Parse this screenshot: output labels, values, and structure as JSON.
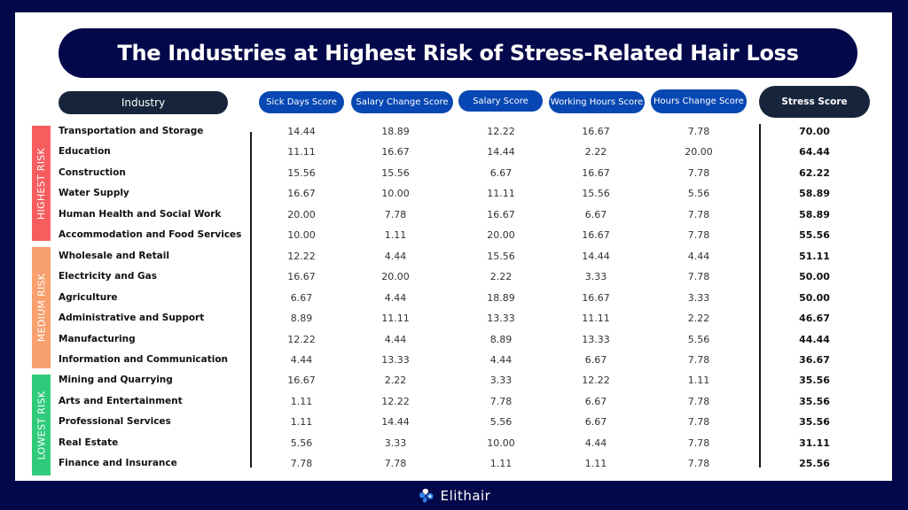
{
  "title": "The Industries at Highest Risk of Stress-Related Hair Loss",
  "headers": {
    "industry": "Industry",
    "columns": [
      "Sick Days Score",
      "Salary Change Score",
      "Salary Score",
      "Working Hours Score",
      "Hours Change Score"
    ],
    "stress": "Stress Score"
  },
  "risk_groups": [
    {
      "label": "HIGHEST RISK",
      "color": "#f75c5f"
    },
    {
      "label": "MEDIUM RISK",
      "color": "#f8a06e"
    },
    {
      "label": "LOWEST RISK",
      "color": "#2fcb7a"
    }
  ],
  "rows": [
    {
      "industry": "Transportation and Storage",
      "values": [
        "14.44",
        "18.89",
        "12.22",
        "16.67",
        "7.78"
      ],
      "stress": "70.00"
    },
    {
      "industry": "Education",
      "values": [
        "11.11",
        "16.67",
        "14.44",
        "2.22",
        "20.00"
      ],
      "stress": "64.44"
    },
    {
      "industry": "Construction",
      "values": [
        "15.56",
        "15.56",
        "6.67",
        "16.67",
        "7.78"
      ],
      "stress": "62.22"
    },
    {
      "industry": "Water Supply",
      "values": [
        "16.67",
        "10.00",
        "11.11",
        "15.56",
        "5.56"
      ],
      "stress": "58.89"
    },
    {
      "industry": "Human Health and Social Work",
      "values": [
        "20.00",
        "7.78",
        "16.67",
        "6.67",
        "7.78"
      ],
      "stress": "58.89"
    },
    {
      "industry": "Accommodation and Food Services",
      "values": [
        "10.00",
        "1.11",
        "20.00",
        "16.67",
        "7.78"
      ],
      "stress": "55.56"
    },
    {
      "industry": "Wholesale and Retail",
      "values": [
        "12.22",
        "4.44",
        "15.56",
        "14.44",
        "4.44"
      ],
      "stress": "51.11"
    },
    {
      "industry": "Electricity and Gas",
      "values": [
        "16.67",
        "20.00",
        "2.22",
        "3.33",
        "7.78"
      ],
      "stress": "50.00"
    },
    {
      "industry": "Agriculture",
      "values": [
        "6.67",
        "4.44",
        "18.89",
        "16.67",
        "3.33"
      ],
      "stress": "50.00"
    },
    {
      "industry": "Administrative and Support",
      "values": [
        "8.89",
        "11.11",
        "13.33",
        "11.11",
        "2.22"
      ],
      "stress": "46.67"
    },
    {
      "industry": "Manufacturing",
      "values": [
        "12.22",
        "4.44",
        "8.89",
        "13.33",
        "5.56"
      ],
      "stress": "44.44"
    },
    {
      "industry": "Information and Communication",
      "values": [
        "4.44",
        "13.33",
        "4.44",
        "6.67",
        "7.78"
      ],
      "stress": "36.67"
    },
    {
      "industry": "Mining and Quarrying",
      "values": [
        "16.67",
        "2.22",
        "3.33",
        "12.22",
        "1.11"
      ],
      "stress": "35.56"
    },
    {
      "industry": "Arts and Entertainment",
      "values": [
        "1.11",
        "12.22",
        "7.78",
        "6.67",
        "7.78"
      ],
      "stress": "35.56"
    },
    {
      "industry": "Professional Services",
      "values": [
        "1.11",
        "14.44",
        "5.56",
        "6.67",
        "7.78"
      ],
      "stress": "35.56"
    },
    {
      "industry": "Real Estate",
      "values": [
        "5.56",
        "3.33",
        "10.00",
        "4.44",
        "7.78"
      ],
      "stress": "31.11"
    },
    {
      "industry": "Finance and Insurance",
      "values": [
        "7.78",
        "7.78",
        "1.11",
        "1.11",
        "7.78"
      ],
      "stress": "25.56"
    }
  ],
  "footer": {
    "brand": "Elithair",
    "logo_icon": "elithair-logo-icon"
  },
  "colors": {
    "navy": "#03084a",
    "header_dark": "#16253b",
    "header_blue": "#0747b3"
  }
}
